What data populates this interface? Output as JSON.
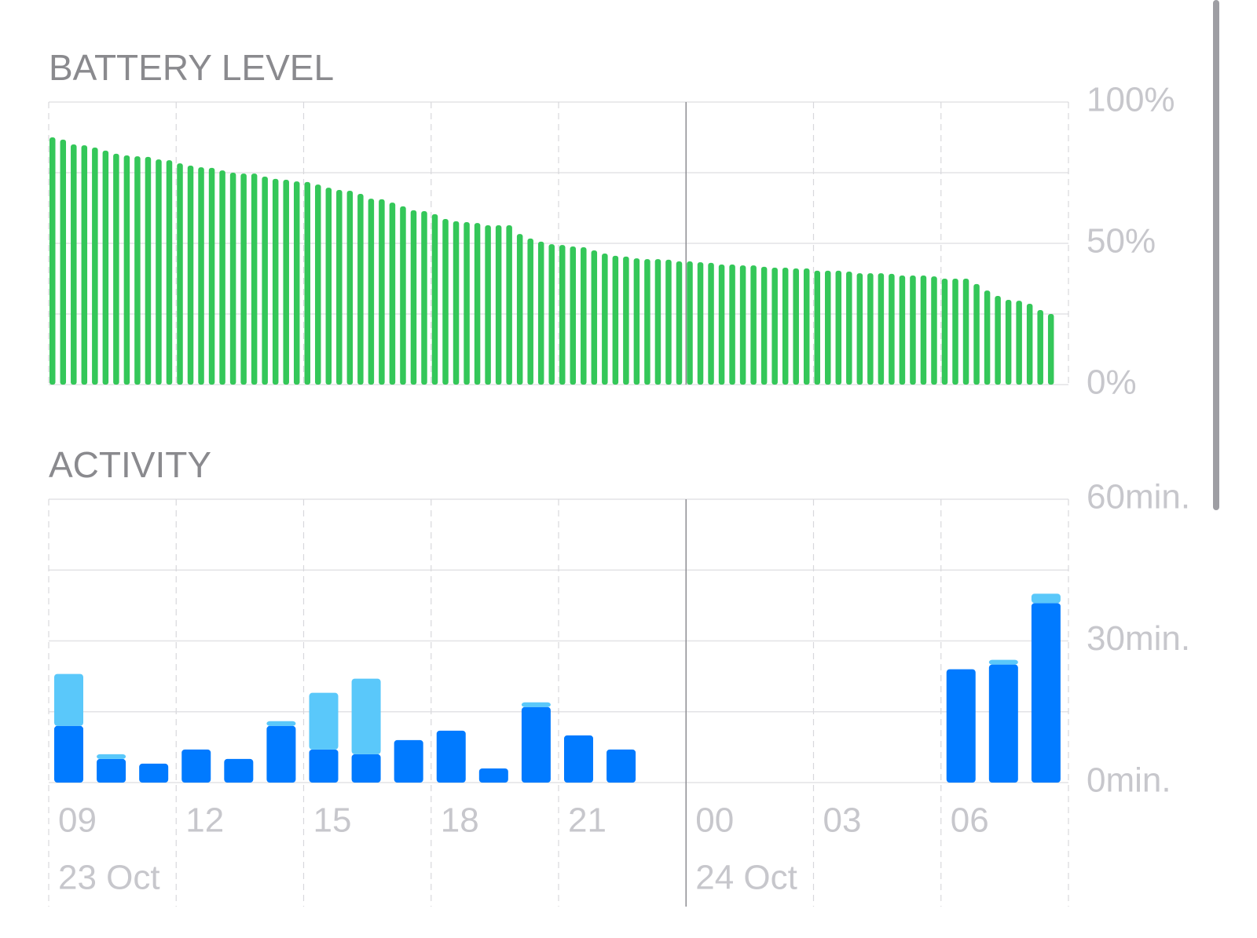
{
  "chart_data": [
    {
      "type": "bar",
      "title": "BATTERY LEVEL",
      "color": "#34c759",
      "values": [
        87.5,
        86.7,
        85,
        84.7,
        83.9,
        82.8,
        81.7,
        81.1,
        80.8,
        80.6,
        79.7,
        79.4,
        78.3,
        77.5,
        76.9,
        76.7,
        75.8,
        75,
        74.7,
        74.7,
        73.6,
        72.8,
        72.5,
        71.9,
        71.7,
        70.8,
        69.7,
        68.9,
        68.6,
        67.5,
        65.8,
        65.6,
        64.4,
        63.1,
        61.7,
        61.4,
        60.3,
        58.6,
        57.8,
        57.5,
        57.2,
        56.4,
        56.4,
        56.4,
        53.3,
        51.7,
        50.6,
        49.7,
        49.4,
        48.9,
        48.6,
        47.5,
        46.4,
        45.6,
        45.3,
        44.7,
        44.4,
        44.4,
        44.2,
        43.6,
        43.6,
        43.3,
        43.1,
        42.5,
        42.5,
        42.2,
        42.2,
        41.7,
        41.4,
        41.4,
        41.1,
        41.1,
        40.3,
        40.3,
        40.3,
        40,
        39.4,
        39.4,
        39.4,
        39.2,
        38.6,
        38.6,
        38.6,
        38.3,
        37.5,
        37.5,
        37.5,
        35.6,
        33.3,
        31.4,
        30,
        29.7,
        28.6,
        26.4,
        25
      ],
      "ylim": [
        0,
        100
      ],
      "yticks": [
        {
          "value": 0,
          "label": "0%"
        },
        {
          "value": 50,
          "label": "50%"
        },
        {
          "value": 100,
          "label": "100%"
        }
      ],
      "minor_yticks": [
        25,
        75
      ],
      "grid": true
    },
    {
      "type": "bar",
      "title": "ACTIVITY",
      "stacked": true,
      "series": [
        {
          "color": "#007aff",
          "values": [
            12,
            5,
            4,
            7,
            5,
            12,
            7,
            6,
            9,
            11,
            3,
            16,
            10,
            7,
            0,
            0,
            0,
            0,
            0,
            0,
            0,
            24,
            25,
            38
          ]
        },
        {
          "color": "#5ac8fa",
          "values": [
            11,
            1,
            0,
            0,
            0,
            1,
            12,
            16,
            0,
            0,
            0,
            1,
            0,
            0,
            0,
            0,
            0,
            0,
            0,
            0,
            0,
            0,
            1,
            2
          ]
        }
      ],
      "ylim": [
        0,
        60
      ],
      "yticks": [
        {
          "value": 0,
          "label": "0min."
        },
        {
          "value": 30,
          "label": "30min."
        },
        {
          "value": 60,
          "label": "60min."
        }
      ],
      "minor_yticks": [
        15,
        45
      ],
      "grid": true,
      "xticks": [
        "09",
        "12",
        "15",
        "18",
        "21",
        "00",
        "03",
        "06"
      ],
      "date_labels": [
        "23 Oct",
        null,
        null,
        null,
        null,
        "24 Oct",
        null,
        null
      ]
    }
  ]
}
